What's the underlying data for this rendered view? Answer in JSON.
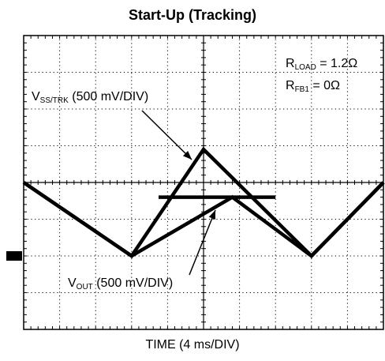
{
  "title": "Start-Up (Tracking)",
  "xlabel": "TIME (4 ms/DIV)",
  "annotations": {
    "rload": {
      "main": "R",
      "sub": "LOAD",
      "rest": " = 1.2Ω"
    },
    "rfb1": {
      "main": "R",
      "sub": "FB1",
      "rest": " = 0Ω"
    },
    "vss": {
      "main": "V",
      "sub": "SS/TRK",
      "rest": " (500 mV/DIV)"
    },
    "vout": {
      "main": "V",
      "sub": "OUT",
      "rest": " (500 mV/DIV)"
    }
  },
  "colors": {
    "trace": "#000000",
    "grid": "#000000",
    "background": "#ffffff"
  },
  "chart_data": {
    "type": "line",
    "title": "Start-Up (Tracking)",
    "xlabel": "TIME (4 ms/DIV)",
    "ylabel": "",
    "xlim": [
      0,
      10
    ],
    "ylim": [
      0,
      8
    ],
    "grid": true,
    "ground_marker_div": 2,
    "series": [
      {
        "name": "VSS/TRK (500 mV/DIV)",
        "x": [
          0,
          3,
          5,
          8,
          10
        ],
        "y": [
          4.0,
          2.0,
          4.9,
          2.0,
          4.0
        ]
      },
      {
        "name": "VOUT (500 mV/DIV)",
        "x": [
          0,
          3,
          5.8,
          8,
          10
        ],
        "y": [
          4.0,
          2.0,
          3.6,
          2.0,
          4.0
        ],
        "flat_segment": {
          "x": [
            3.75,
            7.0
          ],
          "y": 3.6
        }
      }
    ]
  }
}
